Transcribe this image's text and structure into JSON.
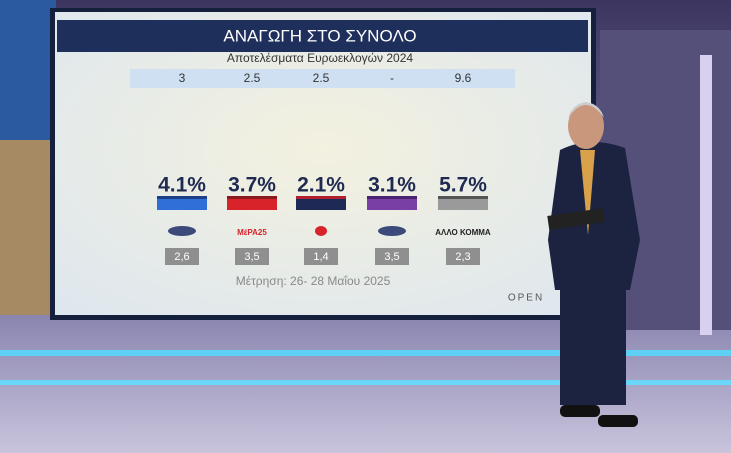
{
  "screen": {
    "title": "ΑΝΑΓΩΓΗ ΣΤΟ ΣΥΝΟΛΟ",
    "subtitle": "Αποτελέσματα Ευρωεκλογών 2024",
    "euro_results": [
      "3",
      "2.5",
      "2.5",
      "-",
      "9.6"
    ],
    "parties": [
      {
        "percent": "4.1%",
        "previous": "2,6"
      },
      {
        "percent": "3.7%",
        "logo": "ΜέΡΑ25",
        "previous": "3,5"
      },
      {
        "percent": "2.1%",
        "previous": "1,4"
      },
      {
        "percent": "3.1%",
        "previous": "3,5"
      },
      {
        "percent": "5.7%",
        "logo": "ΑΛΛΟ ΚΟΜΜΑ",
        "previous": "2,3"
      }
    ],
    "footer": "Μέτρηση: 26- 28 Μαΐου 2025",
    "brand": "OPEN"
  }
}
